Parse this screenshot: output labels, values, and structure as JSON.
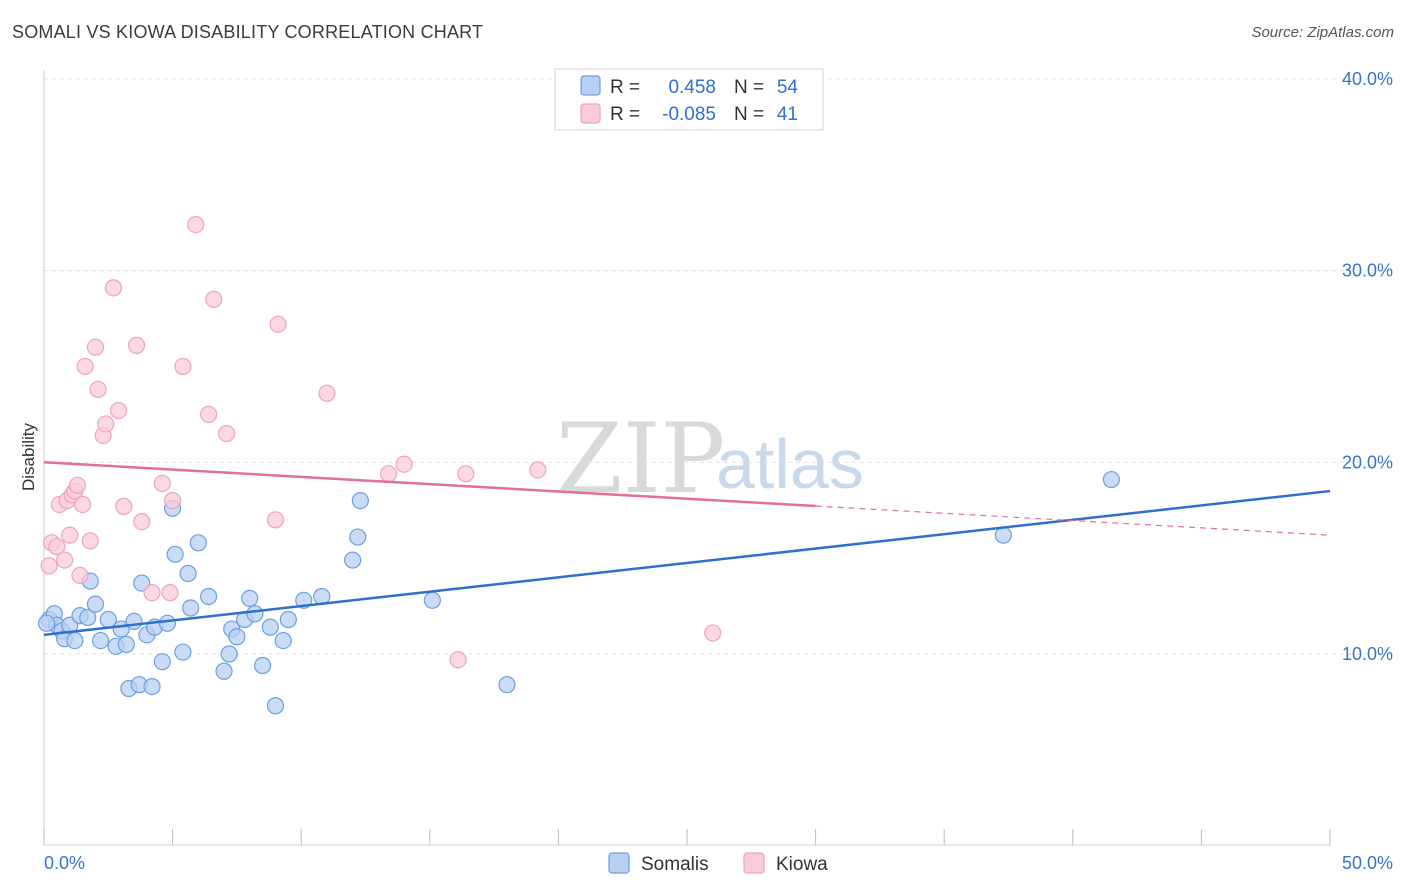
{
  "header": {
    "title": "SOMALI VS KIOWA DISABILITY CORRELATION CHART",
    "source": "Source: ZipAtlas.com"
  },
  "watermark": {
    "zip": "ZIP",
    "atlas": "atlas"
  },
  "legend": {
    "rows": [
      {
        "r_label": "R =",
        "r_value": "0.458",
        "n_label": "N =",
        "n_value": "54",
        "color": "#6c9fe0",
        "fill": "#b8d0f2"
      },
      {
        "r_label": "R =",
        "r_value": "-0.085",
        "n_label": "N =",
        "n_value": "41",
        "color": "#f0a2bb",
        "fill": "#f9ccdb"
      }
    ]
  },
  "bottom_legend": {
    "items": [
      {
        "label": "Somalis"
      },
      {
        "label": "Kiowa"
      }
    ]
  },
  "chart_data": {
    "type": "scatter",
    "title": "SOMALI VS KIOWA DISABILITY CORRELATION CHART",
    "xlabel": "",
    "ylabel": "Disability",
    "xlim": [
      0,
      50
    ],
    "ylim": [
      0,
      42
    ],
    "x_tick_labels": [
      "0.0%",
      "50.0%"
    ],
    "y_ticks": [
      10,
      20,
      30,
      40
    ],
    "y_tick_labels": [
      "10.0%",
      "20.0%",
      "30.0%",
      "40.0%"
    ],
    "grid": true,
    "legend_position": "top-center",
    "series": [
      {
        "name": "Somalis",
        "color": "#2f6fce",
        "fill": "#b8d0f2",
        "stroke": "#6c9fe0",
        "trend": {
          "x": [
            0,
            50
          ],
          "y": [
            11.0,
            18.5
          ],
          "dashed_from": null
        },
        "points": [
          [
            0.2,
            11.8
          ],
          [
            0.4,
            12.1
          ],
          [
            0.5,
            11.5
          ],
          [
            0.7,
            11.2
          ],
          [
            0.8,
            10.8
          ],
          [
            1.0,
            11.5
          ],
          [
            1.2,
            10.7
          ],
          [
            1.4,
            12.0
          ],
          [
            1.7,
            11.9
          ],
          [
            1.8,
            13.8
          ],
          [
            2.0,
            12.6
          ],
          [
            2.2,
            10.7
          ],
          [
            2.5,
            11.8
          ],
          [
            2.8,
            10.4
          ],
          [
            3.0,
            11.3
          ],
          [
            3.2,
            10.5
          ],
          [
            3.3,
            8.2
          ],
          [
            3.5,
            11.7
          ],
          [
            3.7,
            8.4
          ],
          [
            3.8,
            13.7
          ],
          [
            4.0,
            11.0
          ],
          [
            4.2,
            8.3
          ],
          [
            4.3,
            11.4
          ],
          [
            4.6,
            9.6
          ],
          [
            4.8,
            11.6
          ],
          [
            5.0,
            17.6
          ],
          [
            5.1,
            15.2
          ],
          [
            5.4,
            10.1
          ],
          [
            5.6,
            14.2
          ],
          [
            5.7,
            12.4
          ],
          [
            6.0,
            15.8
          ],
          [
            6.4,
            13.0
          ],
          [
            7.0,
            9.1
          ],
          [
            7.2,
            10.0
          ],
          [
            7.3,
            11.3
          ],
          [
            7.5,
            10.9
          ],
          [
            7.8,
            11.8
          ],
          [
            8.0,
            12.9
          ],
          [
            8.2,
            12.1
          ],
          [
            8.5,
            9.4
          ],
          [
            8.8,
            11.4
          ],
          [
            9.0,
            7.3
          ],
          [
            9.3,
            10.7
          ],
          [
            9.5,
            11.8
          ],
          [
            10.1,
            12.8
          ],
          [
            10.8,
            13.0
          ],
          [
            12.0,
            14.9
          ],
          [
            12.2,
            16.1
          ],
          [
            12.3,
            18.0
          ],
          [
            15.1,
            12.8
          ],
          [
            18.0,
            8.4
          ],
          [
            37.3,
            16.2
          ],
          [
            41.5,
            19.1
          ],
          [
            0.1,
            11.6
          ]
        ]
      },
      {
        "name": "Kiowa",
        "color": "#e0709a",
        "fill": "#f9ccdb",
        "stroke": "#f0a2bb",
        "trend": {
          "x": [
            0,
            50
          ],
          "y": [
            20.0,
            16.2
          ],
          "dashed_from": 30.0
        },
        "points": [
          [
            0.2,
            14.6
          ],
          [
            0.3,
            15.8
          ],
          [
            0.5,
            15.6
          ],
          [
            0.6,
            17.8
          ],
          [
            0.8,
            14.9
          ],
          [
            0.9,
            18.0
          ],
          [
            1.0,
            16.2
          ],
          [
            1.1,
            18.3
          ],
          [
            1.2,
            18.5
          ],
          [
            1.3,
            18.8
          ],
          [
            1.4,
            14.1
          ],
          [
            1.5,
            17.8
          ],
          [
            1.6,
            25.0
          ],
          [
            1.8,
            15.9
          ],
          [
            2.0,
            26.0
          ],
          [
            2.1,
            23.8
          ],
          [
            2.3,
            21.4
          ],
          [
            2.4,
            22.0
          ],
          [
            2.7,
            29.1
          ],
          [
            2.9,
            22.7
          ],
          [
            3.1,
            17.7
          ],
          [
            3.6,
            26.1
          ],
          [
            3.8,
            16.9
          ],
          [
            4.2,
            13.2
          ],
          [
            4.6,
            18.9
          ],
          [
            4.9,
            13.2
          ],
          [
            5.0,
            18.0
          ],
          [
            5.4,
            25.0
          ],
          [
            5.9,
            32.4
          ],
          [
            6.4,
            22.5
          ],
          [
            6.6,
            28.5
          ],
          [
            7.1,
            21.5
          ],
          [
            9.0,
            17.0
          ],
          [
            9.1,
            27.2
          ],
          [
            11.0,
            23.6
          ],
          [
            13.4,
            19.4
          ],
          [
            14.0,
            19.9
          ],
          [
            16.1,
            9.7
          ],
          [
            16.4,
            19.4
          ],
          [
            19.2,
            19.6
          ],
          [
            26.0,
            11.1
          ]
        ]
      }
    ]
  }
}
